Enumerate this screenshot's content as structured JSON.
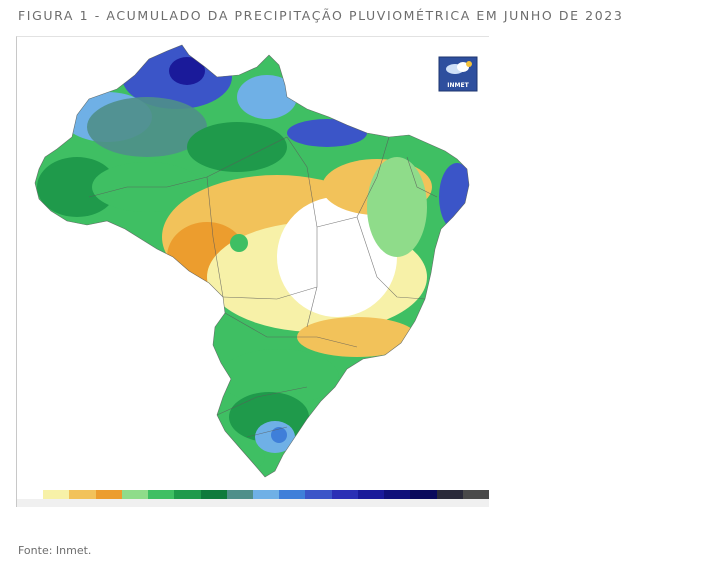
{
  "caption": "FIGURA 1 - ACUMULADO DA PRECIPITAÇÃO PLUVIOMÉTRICA EM JUNHO DE 2023",
  "logo_text": "INMET",
  "source": "Fonte: Inmet.",
  "legend_colors": [
    "#ffffff",
    "#f7f1a8",
    "#f2c25a",
    "#ec9d2e",
    "#8fdc8a",
    "#3fbf63",
    "#1f9a4b",
    "#0f7a3c",
    "#4f8f8a",
    "#6fb0e6",
    "#3f7fd9",
    "#3b55c8",
    "#2b2fb5",
    "#1a1a9a",
    "#10107a",
    "#0a0a5c",
    "#2a2a3a",
    "#4a4a4a"
  ],
  "legend_labels": [
    "",
    "",
    "",
    "",
    "",
    "",
    "",
    "",
    "",
    "",
    "",
    "",
    "",
    "",
    "",
    "",
    "",
    ""
  ]
}
